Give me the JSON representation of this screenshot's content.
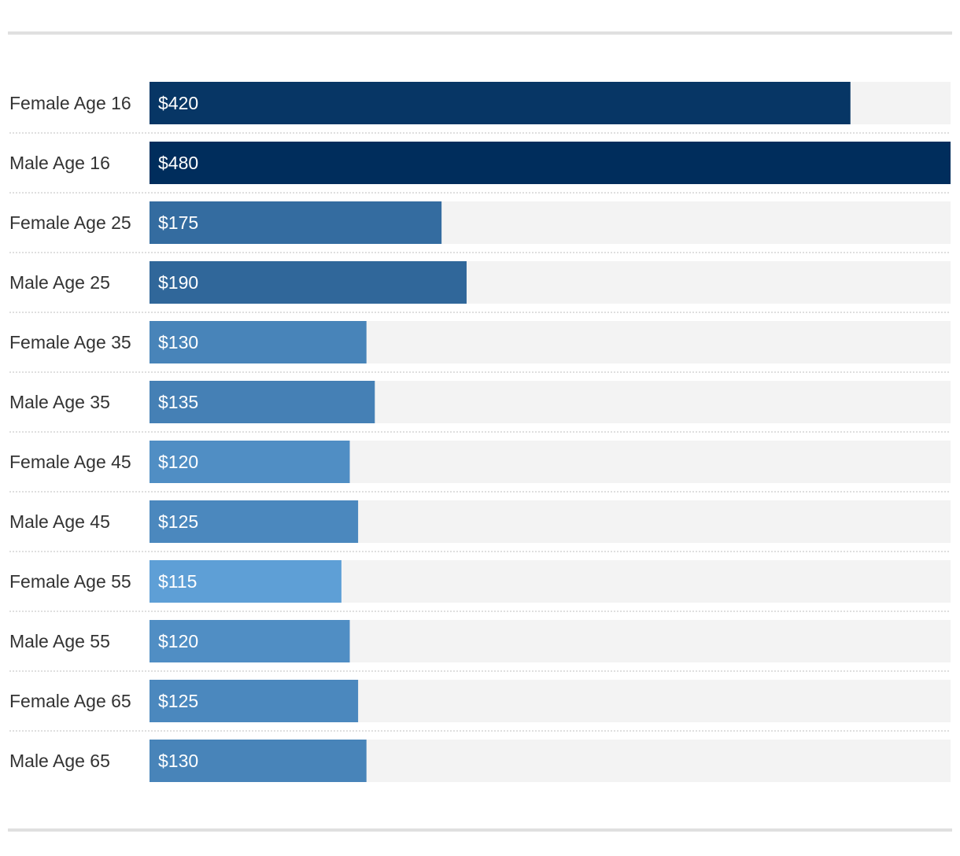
{
  "chart_data": {
    "type": "bar",
    "orientation": "horizontal",
    "categories": [
      "Female Age 16",
      "Male Age 16",
      "Female Age 25",
      "Male Age 25",
      "Female Age 35",
      "Male Age 35",
      "Female Age 45",
      "Male Age 45",
      "Female Age 55",
      "Male Age 55",
      "Female Age 65",
      "Male Age 65"
    ],
    "values": [
      420,
      480,
      175,
      190,
      130,
      135,
      120,
      125,
      115,
      120,
      125,
      130
    ],
    "value_labels": [
      "$420",
      "$480",
      "$175",
      "$190",
      "$130",
      "$135",
      "$120",
      "$125",
      "$115",
      "$120",
      "$125",
      "$130"
    ],
    "xlim": [
      0,
      480
    ],
    "title": "",
    "xlabel": "",
    "ylabel": "",
    "colors": {
      "track": "#f3f3f3",
      "bar_low": "#5e9fd6",
      "bar_high": "#002d5c",
      "separator": "#cccccc"
    }
  }
}
